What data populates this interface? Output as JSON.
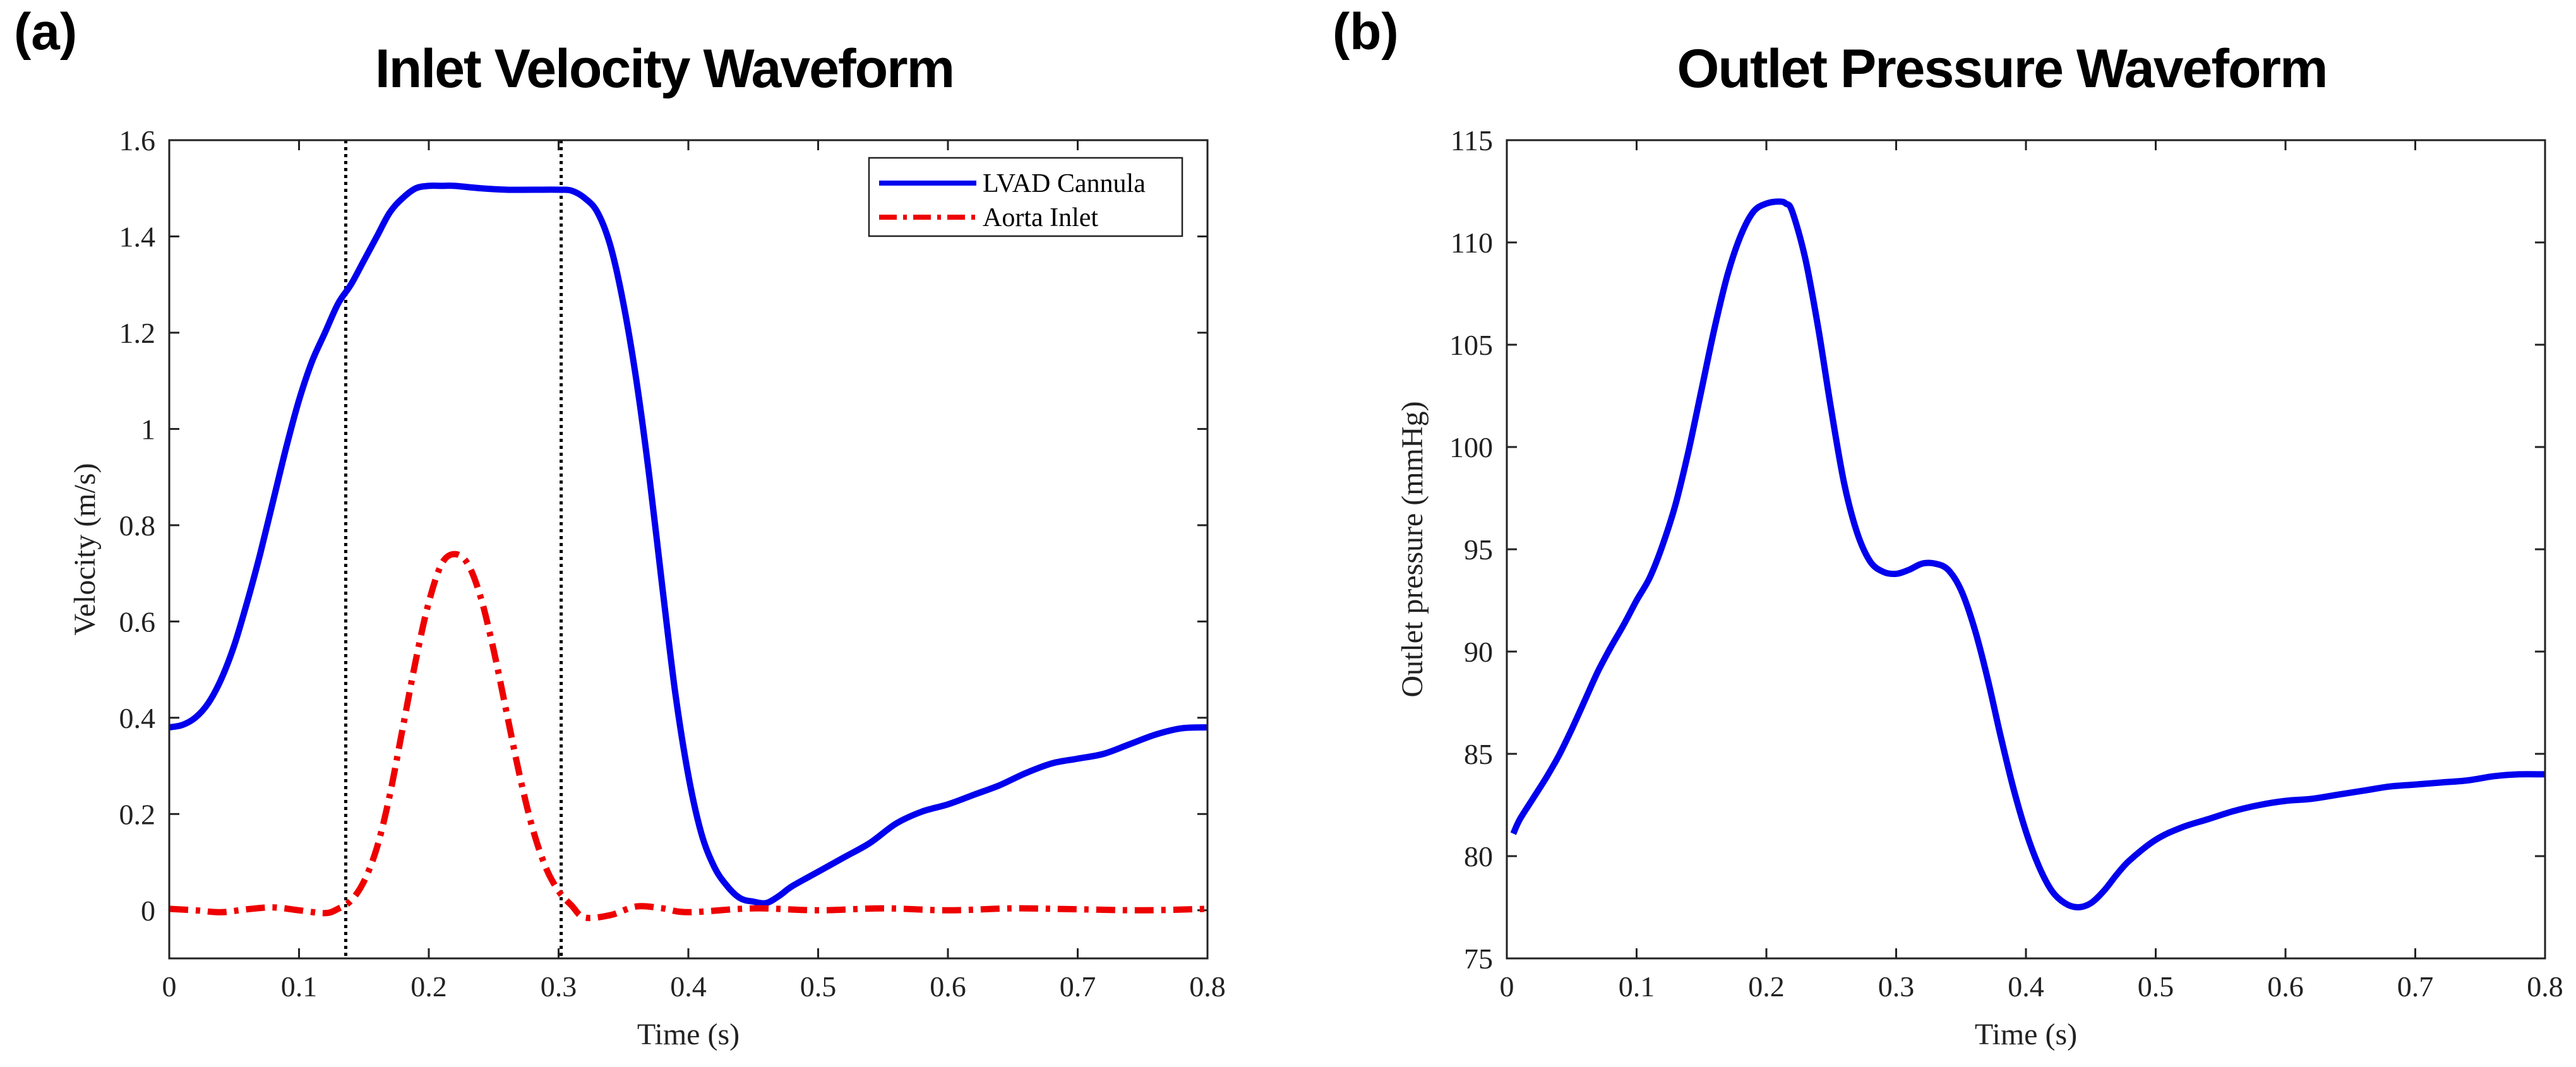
{
  "panels": [
    {
      "letter": "(a)"
    },
    {
      "letter": "(b)"
    }
  ],
  "chart_data": [
    {
      "type": "line",
      "title": "Inlet Velocity Waveform",
      "xlabel": "Time (s)",
      "ylabel": "Velocity (m/s)",
      "xlim": [
        0,
        0.8
      ],
      "ylim": [
        -0.1,
        1.6
      ],
      "xticks": [
        0,
        0.1,
        0.2,
        0.3,
        0.4,
        0.5,
        0.6,
        0.7,
        0.8
      ],
      "xtick_labels": [
        "0",
        "0.1",
        "0.2",
        "0.3",
        "0.4",
        "0.5",
        "0.6",
        "0.7",
        "0.8"
      ],
      "yticks": [
        0,
        0.2,
        0.4,
        0.6,
        0.8,
        1,
        1.2,
        1.4,
        1.6
      ],
      "ytick_labels": [
        "0",
        "0.2",
        "0.4",
        "0.6",
        "0.8",
        "1",
        "1.2",
        "1.4",
        "1.6"
      ],
      "grid": false,
      "legend_position": "top-right",
      "vlines": [
        0.136,
        0.302
      ],
      "series": [
        {
          "name": "LVAD Cannula",
          "color": "#0000ee",
          "style": "solid",
          "x": [
            0,
            0.01,
            0.02,
            0.03,
            0.04,
            0.05,
            0.06,
            0.07,
            0.08,
            0.09,
            0.1,
            0.11,
            0.12,
            0.13,
            0.14,
            0.15,
            0.16,
            0.17,
            0.18,
            0.19,
            0.2,
            0.21,
            0.22,
            0.24,
            0.26,
            0.28,
            0.3,
            0.31,
            0.32,
            0.33,
            0.34,
            0.35,
            0.36,
            0.37,
            0.38,
            0.39,
            0.4,
            0.41,
            0.42,
            0.43,
            0.44,
            0.45,
            0.46,
            0.47,
            0.48,
            0.5,
            0.52,
            0.54,
            0.56,
            0.58,
            0.6,
            0.62,
            0.64,
            0.66,
            0.68,
            0.7,
            0.72,
            0.74,
            0.76,
            0.78,
            0.8
          ],
          "y": [
            0.38,
            0.385,
            0.4,
            0.43,
            0.48,
            0.55,
            0.64,
            0.74,
            0.85,
            0.96,
            1.06,
            1.14,
            1.2,
            1.26,
            1.3,
            1.35,
            1.4,
            1.45,
            1.48,
            1.5,
            1.505,
            1.505,
            1.505,
            1.5,
            1.497,
            1.497,
            1.497,
            1.495,
            1.48,
            1.45,
            1.38,
            1.26,
            1.1,
            0.9,
            0.67,
            0.45,
            0.28,
            0.16,
            0.09,
            0.05,
            0.025,
            0.018,
            0.015,
            0.03,
            0.05,
            0.08,
            0.11,
            0.14,
            0.18,
            0.205,
            0.22,
            0.24,
            0.26,
            0.285,
            0.305,
            0.315,
            0.325,
            0.345,
            0.365,
            0.378,
            0.38
          ]
        },
        {
          "name": "Aorta Inlet",
          "color": "#ee0000",
          "style": "dash-dot",
          "x": [
            0,
            0.02,
            0.04,
            0.06,
            0.08,
            0.1,
            0.12,
            0.13,
            0.14,
            0.15,
            0.16,
            0.17,
            0.18,
            0.19,
            0.2,
            0.21,
            0.22,
            0.23,
            0.24,
            0.25,
            0.26,
            0.27,
            0.28,
            0.29,
            0.3,
            0.31,
            0.32,
            0.34,
            0.36,
            0.38,
            0.4,
            0.45,
            0.5,
            0.55,
            0.6,
            0.65,
            0.7,
            0.75,
            0.8
          ],
          "y": [
            0.003,
            0.0,
            -0.004,
            0.002,
            0.006,
            0.0,
            -0.006,
            0.003,
            0.02,
            0.06,
            0.13,
            0.24,
            0.38,
            0.52,
            0.64,
            0.72,
            0.74,
            0.72,
            0.65,
            0.54,
            0.41,
            0.28,
            0.17,
            0.09,
            0.04,
            0.01,
            -0.015,
            -0.01,
            0.008,
            0.004,
            -0.004,
            0.004,
            0.0,
            0.004,
            0.0,
            0.004,
            0.002,
            0.0,
            0.003
          ]
        }
      ]
    },
    {
      "type": "line",
      "title": "Outlet Pressure Waveform",
      "xlabel": "Time (s)",
      "ylabel": "Outlet pressure (mmHg)",
      "xlim": [
        0,
        0.8
      ],
      "ylim": [
        75,
        115
      ],
      "xticks": [
        0,
        0.1,
        0.2,
        0.3,
        0.4,
        0.5,
        0.6,
        0.7,
        0.8
      ],
      "xtick_labels": [
        "0",
        "0.1",
        "0.2",
        "0.3",
        "0.4",
        "0.5",
        "0.6",
        "0.7",
        "0.8"
      ],
      "yticks": [
        75,
        80,
        85,
        90,
        95,
        100,
        105,
        110,
        115
      ],
      "ytick_labels": [
        "75",
        "80",
        "85",
        "90",
        "95",
        "100",
        "105",
        "110",
        "115"
      ],
      "grid": false,
      "series": [
        {
          "name": "Outlet pressure",
          "color": "#0000ee",
          "style": "solid",
          "x": [
            0.005,
            0.01,
            0.02,
            0.03,
            0.04,
            0.05,
            0.06,
            0.07,
            0.08,
            0.09,
            0.1,
            0.11,
            0.12,
            0.13,
            0.14,
            0.15,
            0.16,
            0.17,
            0.18,
            0.19,
            0.2,
            0.21,
            0.215,
            0.22,
            0.23,
            0.24,
            0.25,
            0.26,
            0.27,
            0.28,
            0.29,
            0.3,
            0.31,
            0.32,
            0.33,
            0.34,
            0.35,
            0.36,
            0.37,
            0.38,
            0.39,
            0.4,
            0.41,
            0.42,
            0.43,
            0.44,
            0.45,
            0.46,
            0.47,
            0.48,
            0.5,
            0.52,
            0.54,
            0.56,
            0.58,
            0.6,
            0.62,
            0.64,
            0.66,
            0.68,
            0.7,
            0.72,
            0.74,
            0.76,
            0.78,
            0.8
          ],
          "y": [
            81.1,
            81.8,
            82.8,
            83.8,
            84.9,
            86.2,
            87.6,
            89.0,
            90.2,
            91.3,
            92.5,
            93.6,
            95.2,
            97.2,
            99.8,
            102.8,
            105.8,
            108.4,
            110.3,
            111.5,
            111.9,
            112.0,
            111.9,
            111.5,
            109.2,
            105.8,
            101.8,
            98.2,
            95.8,
            94.4,
            93.9,
            93.8,
            94.0,
            94.3,
            94.3,
            94.0,
            93.0,
            91.2,
            88.8,
            86.0,
            83.4,
            81.2,
            79.5,
            78.3,
            77.7,
            77.5,
            77.7,
            78.3,
            79.1,
            79.8,
            80.8,
            81.4,
            81.8,
            82.2,
            82.5,
            82.7,
            82.8,
            83.0,
            83.2,
            83.4,
            83.5,
            83.6,
            83.7,
            83.9,
            84.0,
            84.0
          ]
        }
      ]
    }
  ]
}
